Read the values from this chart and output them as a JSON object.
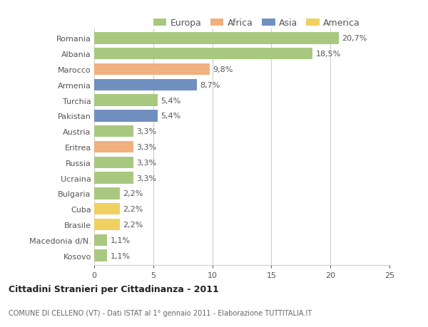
{
  "categories": [
    "Romania",
    "Albania",
    "Marocco",
    "Armenia",
    "Turchia",
    "Pakistan",
    "Austria",
    "Eritrea",
    "Russia",
    "Ucraina",
    "Bulgaria",
    "Cuba",
    "Brasile",
    "Macedonia d/N.",
    "Kosovo"
  ],
  "values": [
    20.7,
    18.5,
    9.8,
    8.7,
    5.4,
    5.4,
    3.3,
    3.3,
    3.3,
    3.3,
    2.2,
    2.2,
    2.2,
    1.1,
    1.1
  ],
  "labels": [
    "20,7%",
    "18,5%",
    "9,8%",
    "8,7%",
    "5,4%",
    "5,4%",
    "3,3%",
    "3,3%",
    "3,3%",
    "3,3%",
    "2,2%",
    "2,2%",
    "2,2%",
    "1,1%",
    "1,1%"
  ],
  "colors": [
    "#a8c880",
    "#a8c880",
    "#f0b080",
    "#7090c0",
    "#a8c880",
    "#7090c0",
    "#a8c880",
    "#f0b080",
    "#a8c880",
    "#a8c880",
    "#a8c880",
    "#f0d060",
    "#f0d060",
    "#a8c880",
    "#a8c880"
  ],
  "continent_labels": [
    "Europa",
    "Africa",
    "Asia",
    "America"
  ],
  "continent_colors": [
    "#a8c880",
    "#f0b080",
    "#7090c0",
    "#f0d060"
  ],
  "xlim": [
    0,
    25
  ],
  "xticks": [
    0,
    5,
    10,
    15,
    20,
    25
  ],
  "title": "Cittadini Stranieri per Cittadinanza - 2011",
  "subtitle": "COMUNE DI CELLENO (VT) - Dati ISTAT al 1° gennaio 2011 - Elaborazione TUTTITALIA.IT",
  "background_color": "#ffffff",
  "bar_height": 0.75,
  "grid_color": "#cccccc",
  "text_color": "#555555",
  "label_fontsize": 8.0,
  "tick_fontsize": 8.0
}
